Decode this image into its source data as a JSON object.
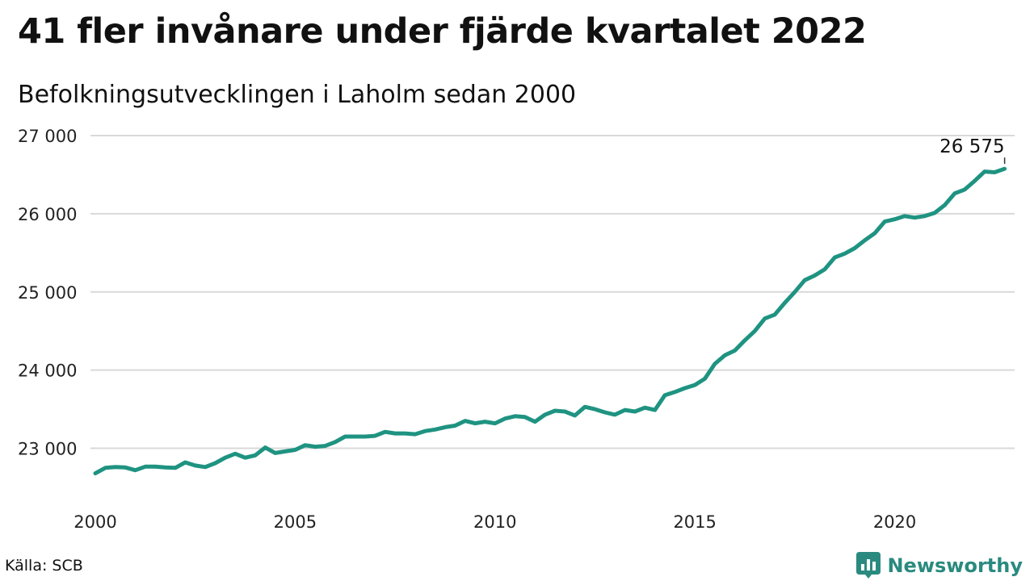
{
  "title": "41 fler invånare under fjärde kvartalet 2022",
  "subtitle": "Befolkningsutvecklingen i Laholm sedan 2000",
  "source": "Källa: SCB",
  "brand": {
    "name": "Newsworthy",
    "icon": "newsworthy-logo-icon",
    "color": "#2a8a7f"
  },
  "chart_data": {
    "type": "line",
    "x_start": 2000.0,
    "x_step": 0.25,
    "xlim": [
      2000,
      2023
    ],
    "ylim": [
      22500,
      27000
    ],
    "x_ticks": [
      2000,
      2005,
      2010,
      2015,
      2020
    ],
    "x_tick_labels": [
      "2000",
      "2005",
      "2010",
      "2015",
      "2020"
    ],
    "y_ticks": [
      23000,
      24000,
      25000,
      26000,
      27000
    ],
    "y_tick_labels": [
      "23 000",
      "24 000",
      "25 000",
      "26 000",
      "27 000"
    ],
    "grid": "horizontal",
    "line_color": "#1f9381",
    "end_label": "26 575",
    "series": [
      {
        "values": [
          22680,
          22750,
          22760,
          22755,
          22720,
          22765,
          22765,
          22755,
          22750,
          22820,
          22780,
          22760,
          22810,
          22880,
          22930,
          22880,
          22910,
          23010,
          22940,
          22960,
          22980,
          23040,
          23020,
          23030,
          23080,
          23150,
          23150,
          23150,
          23160,
          23210,
          23190,
          23190,
          23180,
          23220,
          23240,
          23270,
          23290,
          23350,
          23320,
          23340,
          23320,
          23380,
          23410,
          23400,
          23340,
          23430,
          23480,
          23470,
          23420,
          23530,
          23500,
          23460,
          23430,
          23490,
          23470,
          23520,
          23490,
          23680,
          23720,
          23770,
          23810,
          23890,
          24080,
          24190,
          24250,
          24380,
          24500,
          24660,
          24710,
          24860,
          25000,
          25150,
          25210,
          25290,
          25440,
          25490,
          25560,
          25660,
          25750,
          25900,
          25930,
          25970,
          25950,
          25970,
          26010,
          26110,
          26260,
          26310,
          26420,
          26540,
          26530,
          26575
        ]
      }
    ]
  }
}
